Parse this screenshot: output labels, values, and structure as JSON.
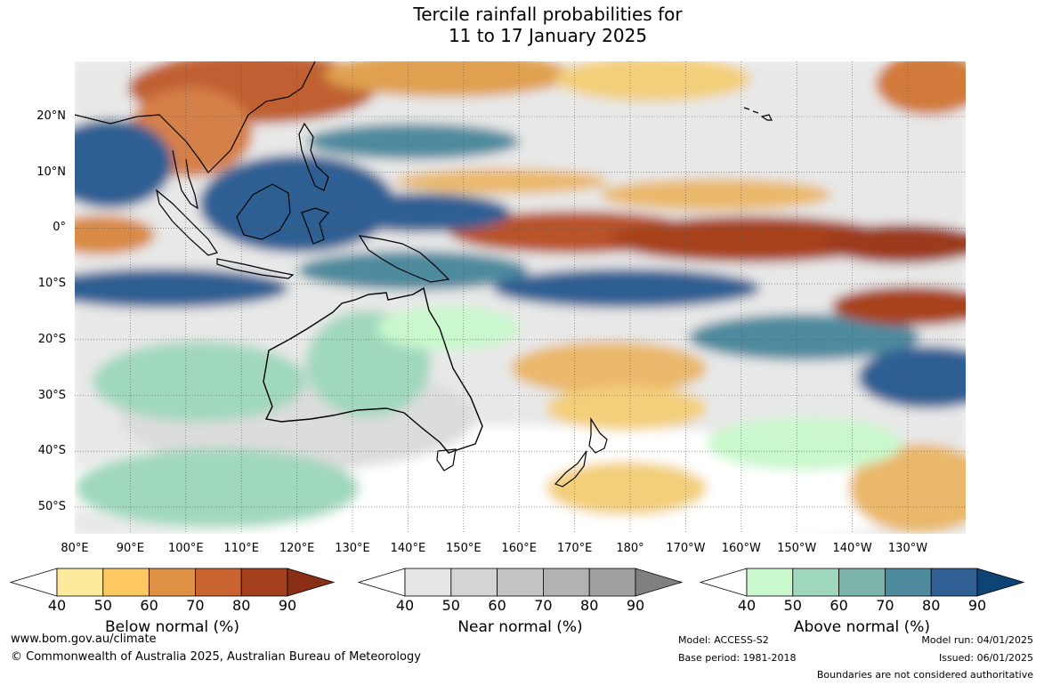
{
  "title_line1": "Tercile rainfall probabilities for",
  "title_line2": "11 to 17 January 2025",
  "lat_labels": [
    "20°N",
    "10°N",
    "0°",
    "10°S",
    "20°S",
    "30°S",
    "40°S",
    "50°S"
  ],
  "lon_labels": [
    "80°E",
    "90°E",
    "100°E",
    "110°E",
    "120°E",
    "130°E",
    "140°E",
    "150°E",
    "160°E",
    "170°E",
    "180°",
    "170°W",
    "160°W",
    "150°W",
    "140°W",
    "130°W"
  ],
  "colorbars": [
    {
      "name": "Below normal (%)",
      "ticks": [
        "40",
        "50",
        "60",
        "70",
        "80",
        "90"
      ],
      "colors": [
        "#ffffff",
        "#feea9c",
        "#fdc862",
        "#de9142",
        "#c96430",
        "#a5401f",
        "#8a2e16"
      ]
    },
    {
      "name": "Near normal (%)",
      "ticks": [
        "40",
        "50",
        "60",
        "70",
        "80",
        "90"
      ],
      "colors": [
        "#ffffff",
        "#e6e6e6",
        "#d4d4d4",
        "#c4c4c4",
        "#b2b2b2",
        "#a0a0a0",
        "#808080"
      ]
    },
    {
      "name": "Above normal (%)",
      "ticks": [
        "40",
        "50",
        "60",
        "70",
        "80",
        "90"
      ],
      "colors": [
        "#ffffff",
        "#c9f8cc",
        "#a0d8bd",
        "#7cb3aa",
        "#4e8a9e",
        "#2f5f93",
        "#0e4376"
      ]
    }
  ],
  "footer": {
    "website": "www.bom.gov.au/climate",
    "copyright": "© Commonwealth of Australia 2025, Australian Bureau of Meteorology",
    "model": "Model: ACCESS-S2",
    "base_period": "Base period: 1981-2018",
    "model_run": "Model run: 04/01/2025",
    "issued": "Issued: 06/01/2025",
    "boundaries": "Boundaries are not considered authoritative"
  }
}
